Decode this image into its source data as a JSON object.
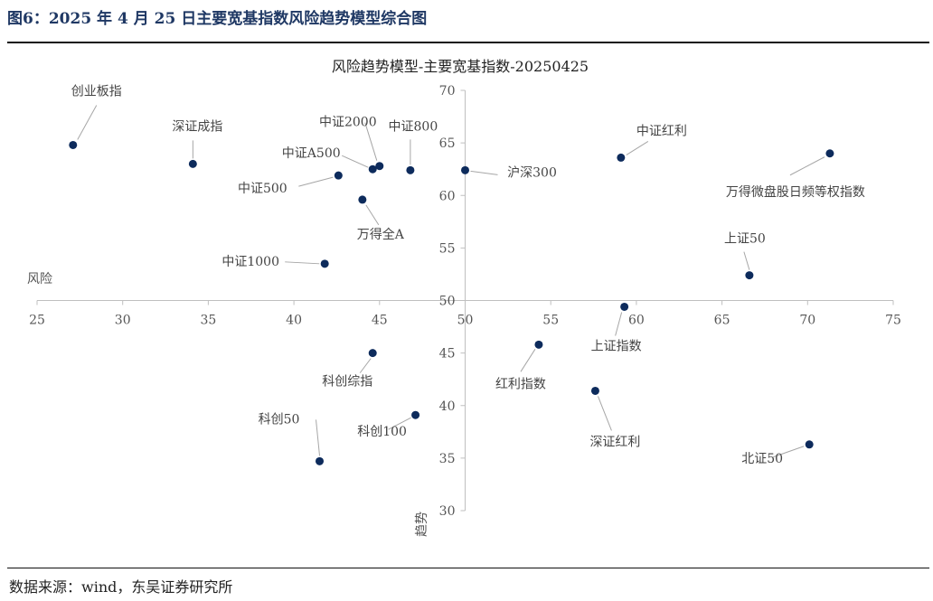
{
  "figure": {
    "title": "图6：2025 年 4 月 25 日主要宽基指数风险趋势模型综合图",
    "source": "数据来源：wind，东吴证券研究所"
  },
  "chart_data": {
    "type": "scatter",
    "title": "风险趋势模型-主要宽基指数-20250425",
    "xlabel": "风险",
    "ylabel": "趋势",
    "xlim": [
      25,
      75
    ],
    "ylim": [
      30,
      70
    ],
    "x_ticks": [
      25,
      30,
      35,
      40,
      45,
      50,
      55,
      60,
      65,
      70,
      75
    ],
    "y_ticks": [
      30,
      35,
      40,
      45,
      50,
      55,
      60,
      65,
      70
    ],
    "axis_cross": [
      50,
      50
    ],
    "grid": false,
    "legend": "none",
    "point_color": "#0d2b5c",
    "points": [
      {
        "label": "创业板指",
        "x": 27.1,
        "y": 64.8
      },
      {
        "label": "深证成指",
        "x": 34.1,
        "y": 63.0
      },
      {
        "label": "中证2000",
        "x": 45.0,
        "y": 62.8
      },
      {
        "label": "中证A500",
        "x": 44.6,
        "y": 62.5
      },
      {
        "label": "中证800",
        "x": 46.8,
        "y": 62.4
      },
      {
        "label": "中证500",
        "x": 42.6,
        "y": 61.9
      },
      {
        "label": "沪深300",
        "x": 50.0,
        "y": 62.4
      },
      {
        "label": "万得全A",
        "x": 44.0,
        "y": 59.6
      },
      {
        "label": "中证1000",
        "x": 41.8,
        "y": 53.5
      },
      {
        "label": "中证红利",
        "x": 59.1,
        "y": 63.6
      },
      {
        "label": "万得微盘股日频等权指数",
        "x": 71.3,
        "y": 64.0
      },
      {
        "label": "上证50",
        "x": 66.6,
        "y": 52.4
      },
      {
        "label": "上证指数",
        "x": 59.3,
        "y": 49.4
      },
      {
        "label": "红利指数",
        "x": 54.3,
        "y": 45.8
      },
      {
        "label": "科创综指",
        "x": 44.6,
        "y": 45.0
      },
      {
        "label": "深证红利",
        "x": 57.6,
        "y": 41.4
      },
      {
        "label": "科创100",
        "x": 47.1,
        "y": 39.1
      },
      {
        "label": "科创50",
        "x": 41.5,
        "y": 34.7
      },
      {
        "label": "北证50",
        "x": 70.1,
        "y": 36.3
      }
    ]
  }
}
